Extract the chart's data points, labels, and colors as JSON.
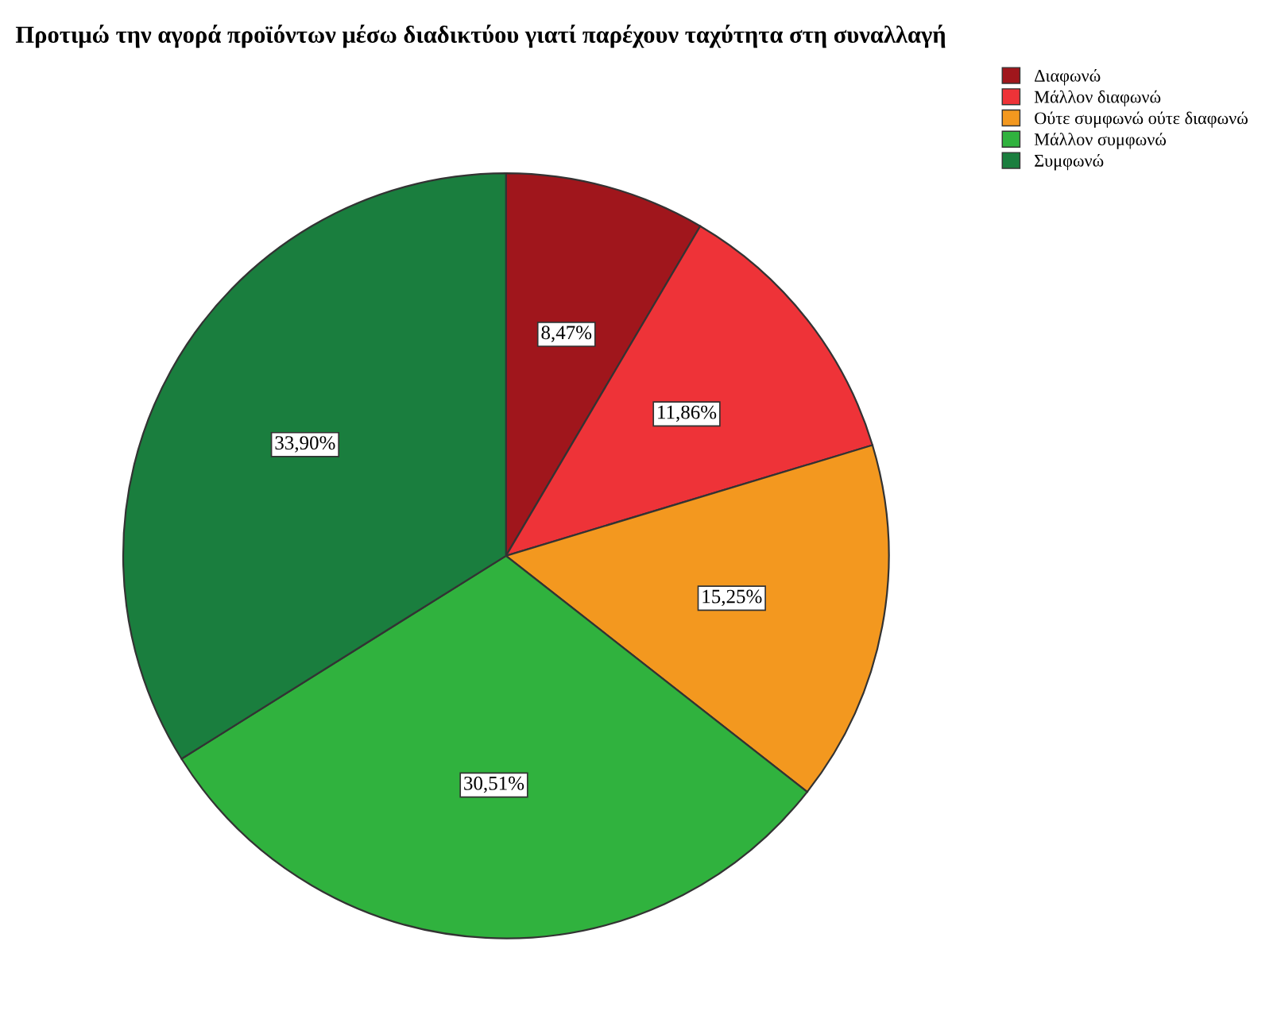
{
  "chart_data": {
    "type": "pie",
    "title": "Προτιμώ την αγορά προϊόντων μέσω διαδικτύου γιατί παρέχουν ταχύτητα στη συναλλαγή",
    "categories": [
      "Διαφωνώ",
      "Μάλλον διαφωνώ",
      "Ούτε συμφωνώ ούτε διαφωνώ",
      "Μάλλον συμφωνώ",
      "Συμφωνώ"
    ],
    "values": [
      8.47,
      11.86,
      15.25,
      30.51,
      33.9
    ],
    "value_labels": [
      "8,47%",
      "11,86%",
      "15,25%",
      "30,51%",
      "33,90%"
    ],
    "colors": [
      "#a0161c",
      "#ee3338",
      "#f3981f",
      "#30b23e",
      "#1a7e3e"
    ],
    "legend": "top right"
  }
}
